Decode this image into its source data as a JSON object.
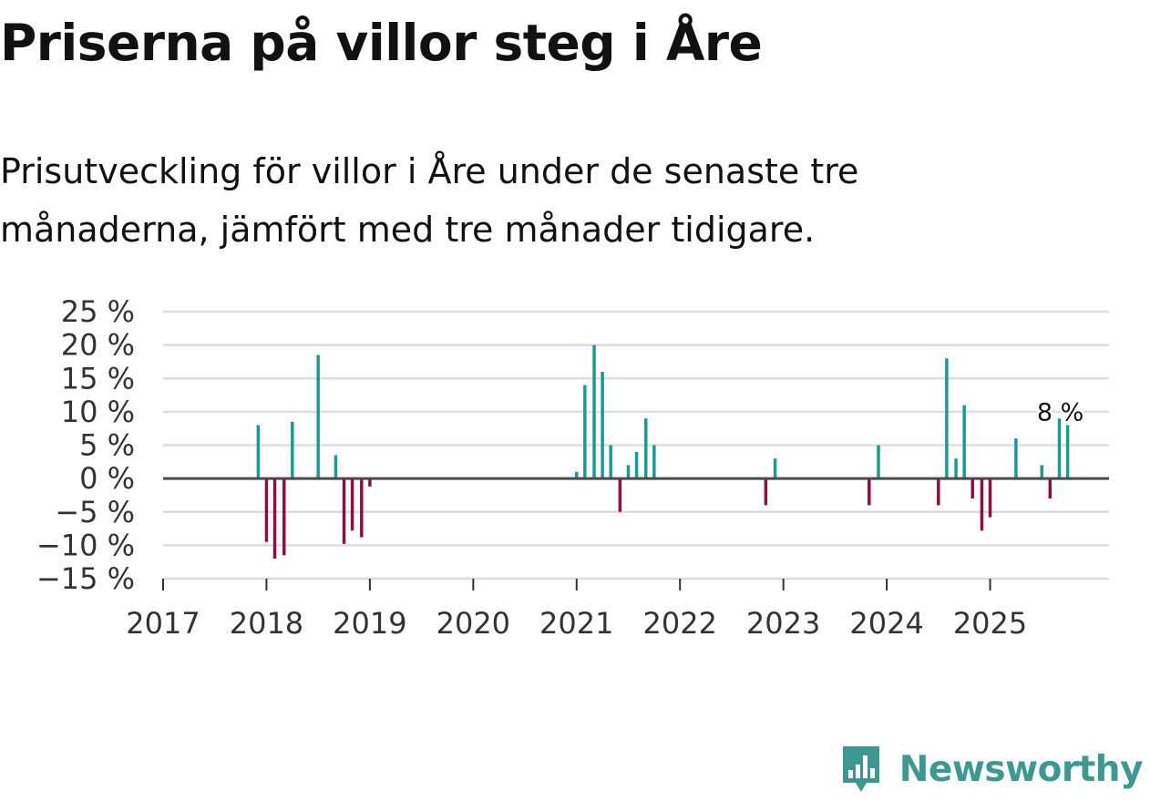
{
  "header": {
    "title": "Priserna på villor steg i Åre",
    "subtitle": "Prisutveckling för villor i Åre under de senaste tre månaderna, jämfört med tre månader tidigare."
  },
  "brand": {
    "name": "Newsworthy",
    "icon": "bar-chart-logo-icon",
    "color": "#3d9990"
  },
  "colors": {
    "positive": "#1a9b91",
    "negative": "#8c0f45",
    "grid": "#dddddd",
    "zero_line": "#4a4a4a"
  },
  "chart_data": {
    "type": "bar",
    "title": "Priserna på villor steg i Åre",
    "subtitle": "Prisutveckling för villor i Åre under de senaste tre månaderna, jämfört med tre månader tidigare.",
    "xlabel": "",
    "ylabel": "",
    "ylim": [
      -15,
      25
    ],
    "y_ticks": [
      25,
      20,
      15,
      10,
      5,
      0,
      -5,
      -10,
      -15
    ],
    "y_tick_labels": [
      "25 %",
      "20 %",
      "15 %",
      "10 %",
      "5 %",
      "0 %",
      "−5 %",
      "−10 %",
      "−15 %"
    ],
    "x_range": [
      2017,
      2026.15
    ],
    "x_ticks": [
      2017,
      2018,
      2019,
      2020,
      2021,
      2022,
      2023,
      2024,
      2025
    ],
    "x_tick_labels": [
      "2017",
      "2018",
      "2019",
      "2020",
      "2021",
      "2022",
      "2023",
      "2024",
      "2025"
    ],
    "grid": true,
    "annotation": {
      "x": 2025.67,
      "y": 8,
      "label": "8 %"
    },
    "series": [
      {
        "name": "Prisutveckling",
        "x": [
          2017.92,
          2018.0,
          2018.08,
          2018.17,
          2018.25,
          2018.5,
          2018.67,
          2018.75,
          2018.83,
          2018.92,
          2019.0,
          2021.0,
          2021.08,
          2021.17,
          2021.25,
          2021.33,
          2021.42,
          2021.5,
          2021.58,
          2021.67,
          2021.75,
          2022.83,
          2022.92,
          2023.83,
          2023.92,
          2024.5,
          2024.58,
          2024.67,
          2024.75,
          2024.83,
          2024.92,
          2025.0,
          2025.25,
          2025.5,
          2025.58,
          2025.67,
          2025.75
        ],
        "values": [
          8,
          -9.5,
          -12,
          -11.5,
          8.5,
          18.5,
          3.5,
          -9.8,
          -7.8,
          -8.8,
          -1.2,
          1,
          14,
          20,
          16,
          5,
          -5,
          2,
          4,
          9,
          5,
          -4,
          3,
          -4,
          5,
          -4,
          18,
          3,
          11,
          -3,
          -7.8,
          -5.8,
          6,
          2,
          -3,
          9,
          8
        ]
      }
    ]
  }
}
